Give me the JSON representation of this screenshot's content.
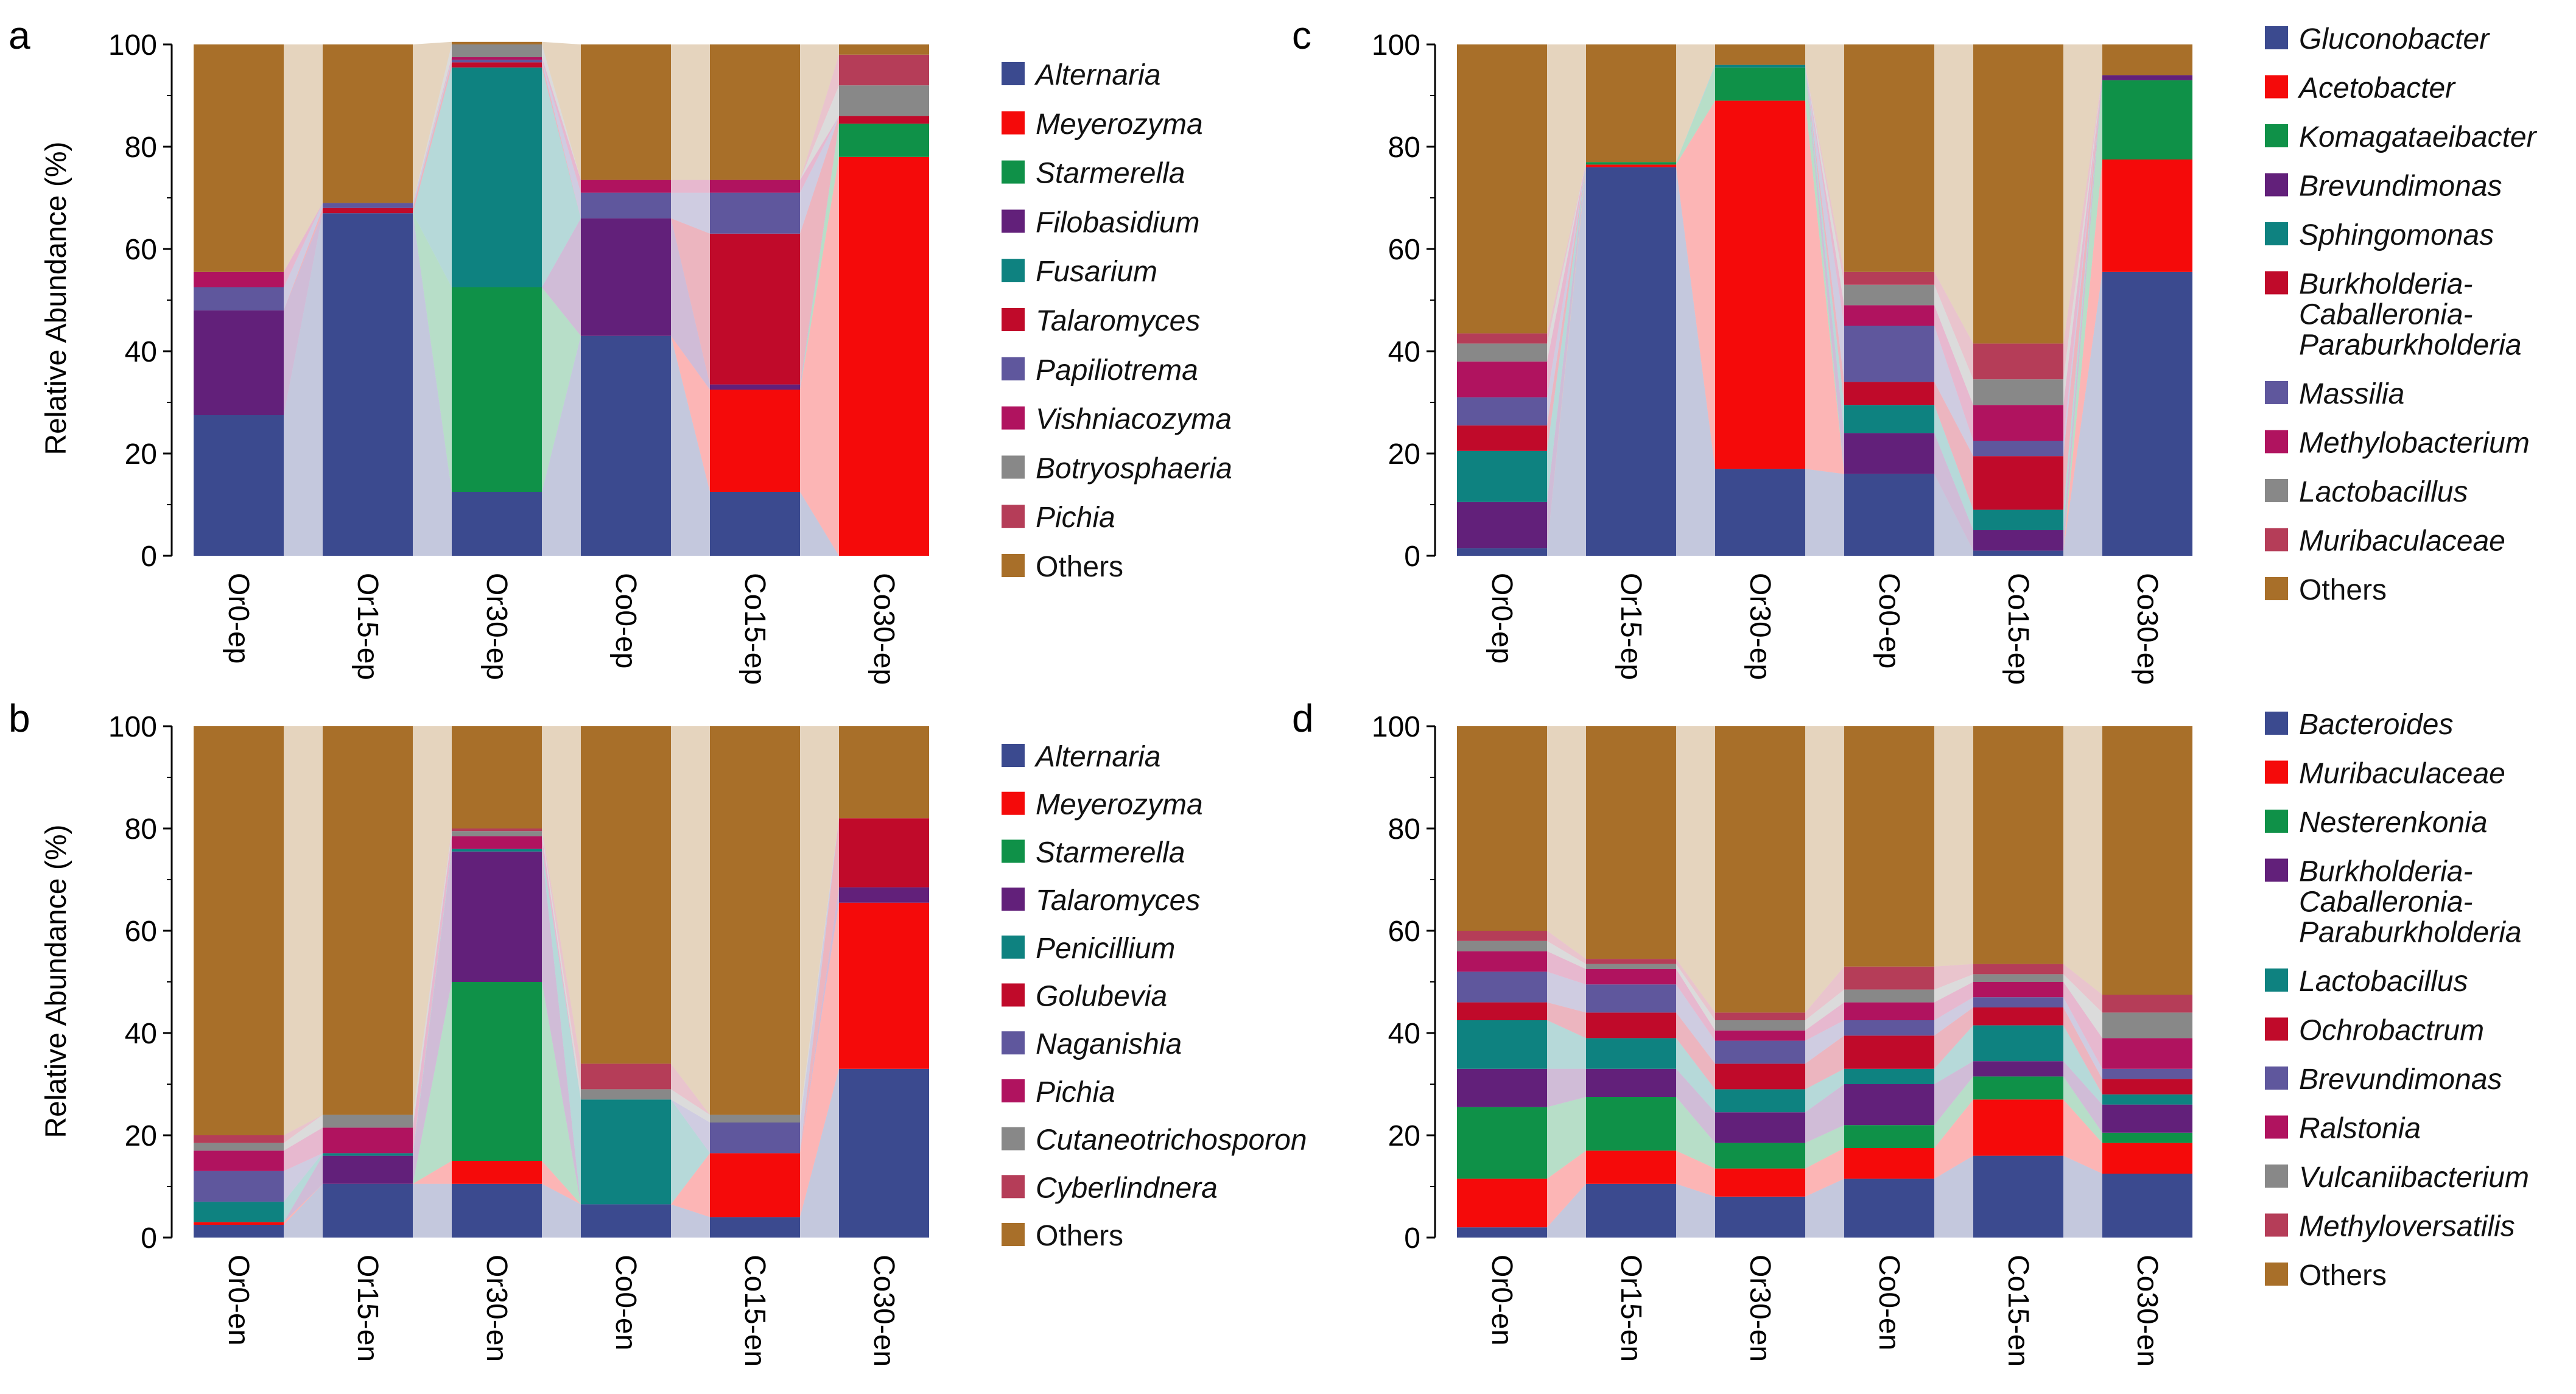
{
  "figure": {
    "ylabel": "Relative Abundance (%)"
  },
  "chart_data": [
    {
      "panel": "a",
      "type": "stacked-bar",
      "ylabel": "Relative Abundance (%)",
      "ylim": [
        0,
        100
      ],
      "yticks": [
        0,
        20,
        40,
        60,
        80,
        100
      ],
      "categories": [
        "Or0-ep",
        "Or15-ep",
        "Or30-ep",
        "Co0-ep",
        "Co15-ep",
        "Co30-ep"
      ],
      "series": [
        {
          "name": "Alternaria",
          "italic": true,
          "color": "#3b4a8f",
          "values": [
            27.5,
            67,
            12.5,
            43,
            12.5,
            0
          ]
        },
        {
          "name": "Meyerozyma",
          "italic": true,
          "color": "#f50a0a",
          "values": [
            0,
            0,
            0,
            0,
            20,
            78
          ]
        },
        {
          "name": "Starmerella",
          "italic": true,
          "color": "#0f9148",
          "values": [
            0,
            0,
            40,
            0,
            0,
            6.5
          ]
        },
        {
          "name": "Filobasidium",
          "italic": true,
          "color": "#62207a",
          "values": [
            20.5,
            0,
            0,
            23,
            1,
            0
          ]
        },
        {
          "name": "Fusarium",
          "italic": true,
          "color": "#0e8280",
          "values": [
            0,
            0,
            43,
            0,
            0,
            0
          ]
        },
        {
          "name": "Talaromyces",
          "italic": true,
          "color": "#c00a2a",
          "values": [
            0,
            1,
            1,
            0,
            29.5,
            1.5
          ]
        },
        {
          "name": "Papiliotrema",
          "italic": true,
          "color": "#5f579d",
          "values": [
            4.5,
            1,
            0.5,
            5,
            8,
            0
          ]
        },
        {
          "name": "Vishniacozyma",
          "italic": true,
          "color": "#b0135f",
          "values": [
            3,
            0,
            0.5,
            2.5,
            2.5,
            0
          ]
        },
        {
          "name": "Botryosphaeria",
          "italic": true,
          "color": "#888888",
          "values": [
            0,
            0,
            2.5,
            0,
            0,
            6
          ]
        },
        {
          "name": "Pichia",
          "italic": true,
          "color": "#b53d58",
          "values": [
            0,
            0,
            0,
            0,
            0,
            6
          ]
        },
        {
          "name": "Others",
          "italic": false,
          "color": "#a86f29",
          "values": [
            44.5,
            31,
            0.5,
            26.5,
            26.5,
            2
          ]
        }
      ]
    },
    {
      "panel": "b",
      "type": "stacked-bar",
      "ylabel": "Relative Abundance (%)",
      "ylim": [
        0,
        100
      ],
      "yticks": [
        0,
        20,
        40,
        60,
        80,
        100
      ],
      "categories": [
        "Or0-en",
        "Or15-en",
        "Or30-en",
        "Co0-en",
        "Co15-en",
        "Co30-en"
      ],
      "series": [
        {
          "name": "Alternaria",
          "italic": true,
          "color": "#3b4a8f",
          "values": [
            2.5,
            10.5,
            10.5,
            6.5,
            4,
            33
          ]
        },
        {
          "name": "Meyerozyma",
          "italic": true,
          "color": "#f50a0a",
          "values": [
            0.5,
            0,
            4.5,
            0,
            12.5,
            32.5
          ]
        },
        {
          "name": "Starmerella",
          "italic": true,
          "color": "#0f9148",
          "values": [
            0,
            0,
            35,
            0,
            0,
            0
          ]
        },
        {
          "name": "Talaromyces",
          "italic": true,
          "color": "#62207a",
          "values": [
            0,
            5.5,
            25.5,
            0,
            0,
            3
          ]
        },
        {
          "name": "Penicillium",
          "italic": true,
          "color": "#0e8280",
          "values": [
            4,
            0.5,
            0.5,
            20.5,
            0,
            0
          ]
        },
        {
          "name": "Golubevia",
          "italic": true,
          "color": "#c00a2a",
          "values": [
            0,
            0,
            0,
            0,
            0,
            13.5
          ]
        },
        {
          "name": "Naganishia",
          "italic": true,
          "color": "#5f579d",
          "values": [
            6,
            0,
            0,
            0,
            6,
            0
          ]
        },
        {
          "name": "Pichia",
          "italic": true,
          "color": "#b0135f",
          "values": [
            4,
            5,
            2.5,
            0,
            0,
            0
          ]
        },
        {
          "name": "Cutaneotrichosporon",
          "italic": true,
          "color": "#888888",
          "values": [
            1.5,
            2.5,
            1,
            2,
            1.5,
            0
          ]
        },
        {
          "name": "Cyberlindnera",
          "italic": true,
          "color": "#b53d58",
          "values": [
            1.5,
            0,
            0.5,
            5,
            0,
            0
          ]
        },
        {
          "name": "Others",
          "italic": false,
          "color": "#a86f29",
          "values": [
            80,
            76,
            20,
            66,
            76,
            18
          ]
        }
      ]
    },
    {
      "panel": "c",
      "type": "stacked-bar",
      "ylabel": "",
      "ylim": [
        0,
        100
      ],
      "yticks": [
        0,
        20,
        40,
        60,
        80,
        100
      ],
      "categories": [
        "Or0-ep",
        "Or15-ep",
        "Or30-ep",
        "Co0-ep",
        "Co15-ep",
        "Co30-ep"
      ],
      "series": [
        {
          "name": "Gluconobacter",
          "italic": true,
          "color": "#3b4a8f",
          "values": [
            1.5,
            76,
            17,
            16,
            1,
            55.5
          ]
        },
        {
          "name": "Acetobacter",
          "italic": true,
          "color": "#f50a0a",
          "values": [
            0,
            0.5,
            72,
            0,
            0,
            22
          ]
        },
        {
          "name": "Komagataeibacter",
          "italic": true,
          "color": "#0f9148",
          "values": [
            0,
            0.5,
            6.5,
            0,
            0,
            15.5
          ]
        },
        {
          "name": "Brevundimonas",
          "italic": true,
          "color": "#62207a",
          "values": [
            9,
            0,
            0,
            8,
            4,
            1
          ]
        },
        {
          "name": "Sphingomonas",
          "italic": true,
          "color": "#0e8280",
          "values": [
            10,
            0,
            0.5,
            5.5,
            4,
            0
          ]
        },
        {
          "name": "Burkholderia-\nCaballeronia-\nParaburkholderia",
          "italic": true,
          "color": "#c00a2a",
          "values": [
            5,
            0,
            0,
            4.5,
            10.5,
            0
          ]
        },
        {
          "name": "Massilia",
          "italic": true,
          "color": "#5f579d",
          "values": [
            5.5,
            0,
            0,
            11,
            3,
            0
          ]
        },
        {
          "name": "Methylobacterium",
          "italic": true,
          "color": "#b0135f",
          "values": [
            7,
            0,
            0,
            4,
            7,
            0
          ]
        },
        {
          "name": "Lactobacillus",
          "italic": true,
          "color": "#888888",
          "values": [
            3.5,
            0,
            0,
            4,
            5,
            0
          ]
        },
        {
          "name": "Muribaculaceae",
          "italic": true,
          "color": "#b53d58",
          "values": [
            2,
            0,
            0,
            2.5,
            7,
            0
          ]
        },
        {
          "name": "Others",
          "italic": false,
          "color": "#a86f29",
          "values": [
            56.5,
            23,
            4,
            44.5,
            58.5,
            6
          ]
        }
      ]
    },
    {
      "panel": "d",
      "type": "stacked-bar",
      "ylabel": "",
      "ylim": [
        0,
        100
      ],
      "yticks": [
        0,
        20,
        40,
        60,
        80,
        100
      ],
      "categories": [
        "Or0-en",
        "Or15-en",
        "Or30-en",
        "Co0-en",
        "Co15-en",
        "Co30-en"
      ],
      "series": [
        {
          "name": "Bacteroides",
          "italic": true,
          "color": "#3b4a8f",
          "values": [
            2,
            10.5,
            8,
            11.5,
            16,
            12.5
          ]
        },
        {
          "name": "Muribaculaceae",
          "italic": true,
          "color": "#f50a0a",
          "values": [
            9.5,
            6.5,
            5.5,
            6,
            11,
            6
          ]
        },
        {
          "name": "Nesterenkonia",
          "italic": true,
          "color": "#0f9148",
          "values": [
            14,
            10.5,
            5,
            4.5,
            4.5,
            2
          ]
        },
        {
          "name": "Burkholderia-\nCaballeronia-\nParaburkholderia",
          "italic": true,
          "color": "#62207a",
          "values": [
            7.5,
            5.5,
            6,
            8,
            3,
            5.5
          ]
        },
        {
          "name": "Lactobacillus",
          "italic": true,
          "color": "#0e8280",
          "values": [
            9.5,
            6,
            4.5,
            3,
            7,
            2
          ]
        },
        {
          "name": "Ochrobactrum",
          "italic": true,
          "color": "#c00a2a",
          "values": [
            3.5,
            5,
            5,
            6.5,
            3.5,
            3
          ]
        },
        {
          "name": "Brevundimonas",
          "italic": true,
          "color": "#5f579d",
          "values": [
            6,
            5.5,
            4.5,
            3,
            2,
            2
          ]
        },
        {
          "name": "Ralstonia",
          "italic": true,
          "color": "#b0135f",
          "values": [
            4,
            3,
            2,
            3.5,
            3,
            6
          ]
        },
        {
          "name": "Vulcaniibacterium",
          "italic": true,
          "color": "#888888",
          "values": [
            2,
            1,
            2,
            2.5,
            1.5,
            5
          ]
        },
        {
          "name": "Methyloversatilis",
          "italic": true,
          "color": "#b53d58",
          "values": [
            2,
            1,
            1.5,
            4.5,
            2,
            3.5
          ]
        },
        {
          "name": "Others",
          "italic": false,
          "color": "#a86f29",
          "values": [
            40,
            45.5,
            56,
            47,
            46.5,
            52.5
          ]
        }
      ]
    }
  ]
}
